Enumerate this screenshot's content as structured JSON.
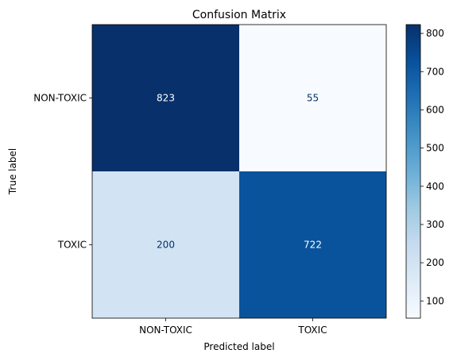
{
  "chart_data": {
    "type": "heatmap",
    "title": "Confusion Matrix",
    "xlabel": "Predicted label",
    "ylabel": "True label",
    "x_categories": [
      "NON-TOXIC",
      "TOXIC"
    ],
    "y_categories": [
      "NON-TOXIC",
      "TOXIC"
    ],
    "values": [
      [
        823,
        55
      ],
      [
        200,
        722
      ]
    ],
    "colormap": "Blues",
    "colorbar": {
      "min": 55,
      "max": 823,
      "ticks": [
        100,
        200,
        300,
        400,
        500,
        600,
        700,
        800
      ]
    },
    "cell_text_colors": {
      "light": "#ffffff",
      "dark": "#08306b"
    },
    "grid": false
  }
}
